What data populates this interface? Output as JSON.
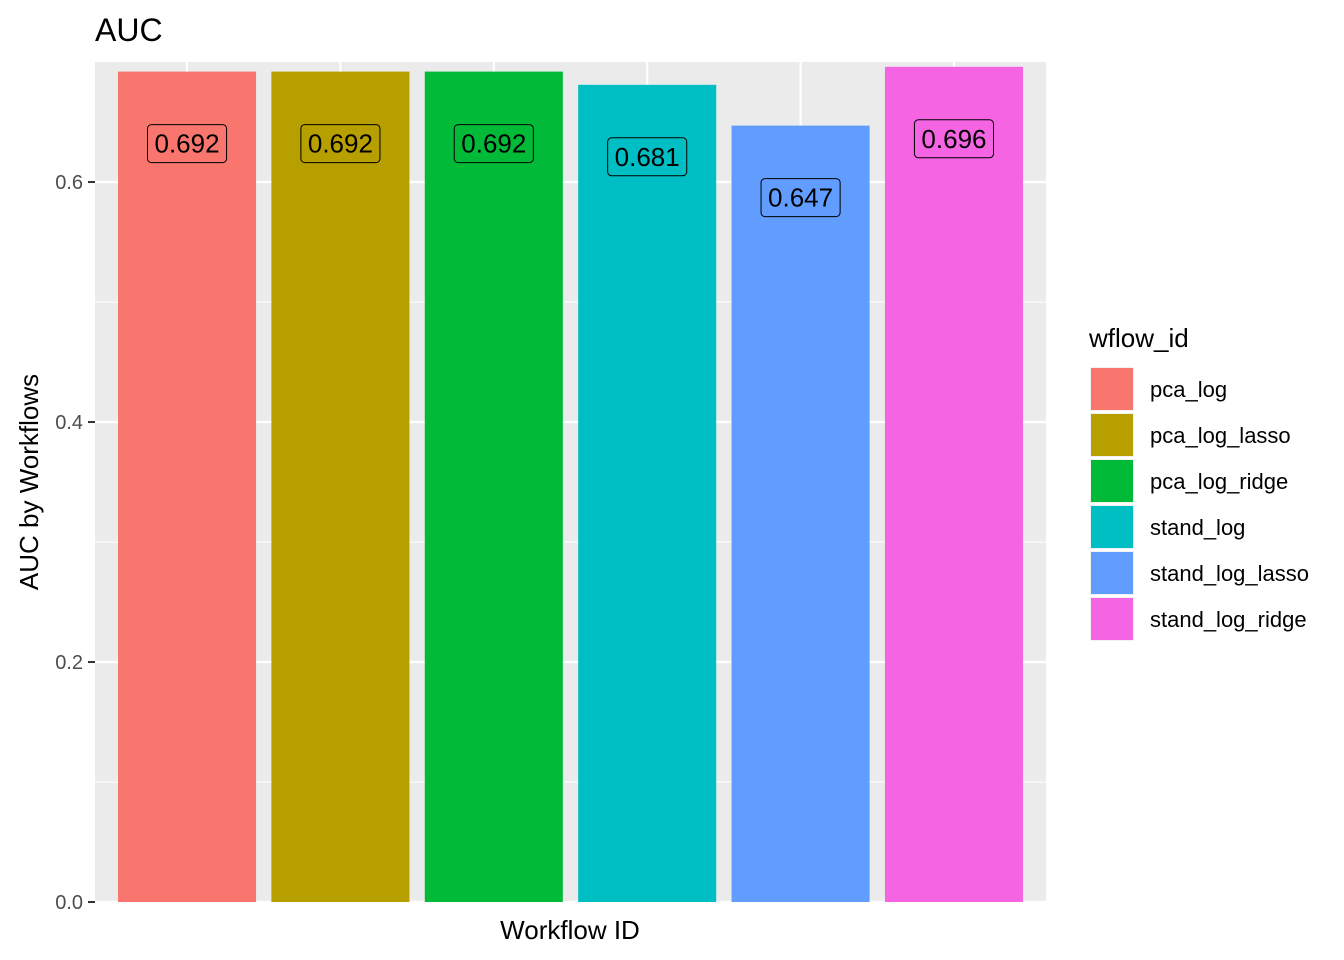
{
  "chart_data": {
    "type": "bar",
    "title": "AUC",
    "xlabel": "Workflow ID",
    "ylabel": "AUC by Workflows",
    "ylim": [
      0,
      0.7
    ],
    "yticks": [
      0.0,
      0.2,
      0.4,
      0.6
    ],
    "ytick_labels": [
      "0.0",
      "0.2",
      "0.4",
      "0.6"
    ],
    "grid": true,
    "legend": {
      "title": "wflow_id",
      "position": "right"
    },
    "categories": [
      "pca_log",
      "pca_log_lasso",
      "pca_log_ridge",
      "stand_log",
      "stand_log_lasso",
      "stand_log_ridge"
    ],
    "values": [
      0.692,
      0.692,
      0.692,
      0.681,
      0.647,
      0.696
    ],
    "value_labels": [
      "0.692",
      "0.692",
      "0.692",
      "0.681",
      "0.647",
      "0.696"
    ],
    "colors": [
      "#F8766D",
      "#B79F00",
      "#00BA38",
      "#00BFC4",
      "#619CFF",
      "#F564E3"
    ]
  }
}
